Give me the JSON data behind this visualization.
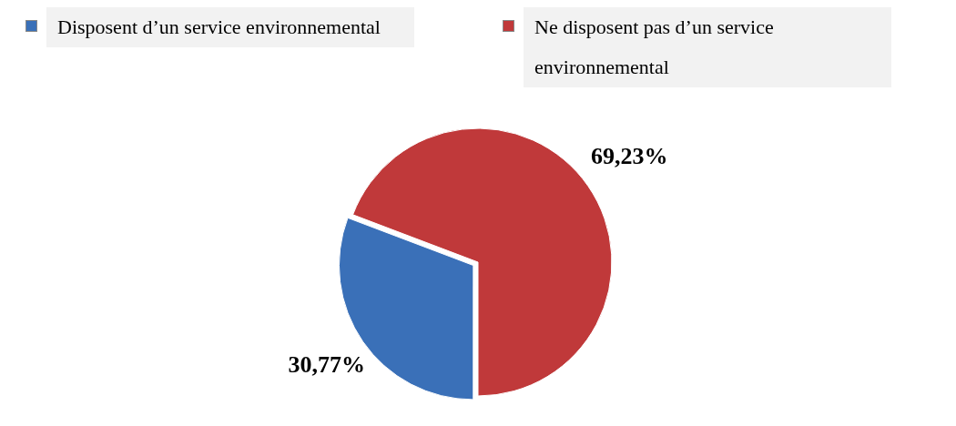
{
  "chart_data": {
    "type": "pie",
    "categories": [
      "Disposent d’un service environnemental",
      "Ne disposent pas d’un service environnemental"
    ],
    "values": [
      30.77,
      69.23
    ],
    "colors": [
      "#3a70b8",
      "#c0393a"
    ],
    "value_labels": [
      "30,77%",
      "69,23%"
    ],
    "legend": "top"
  }
}
